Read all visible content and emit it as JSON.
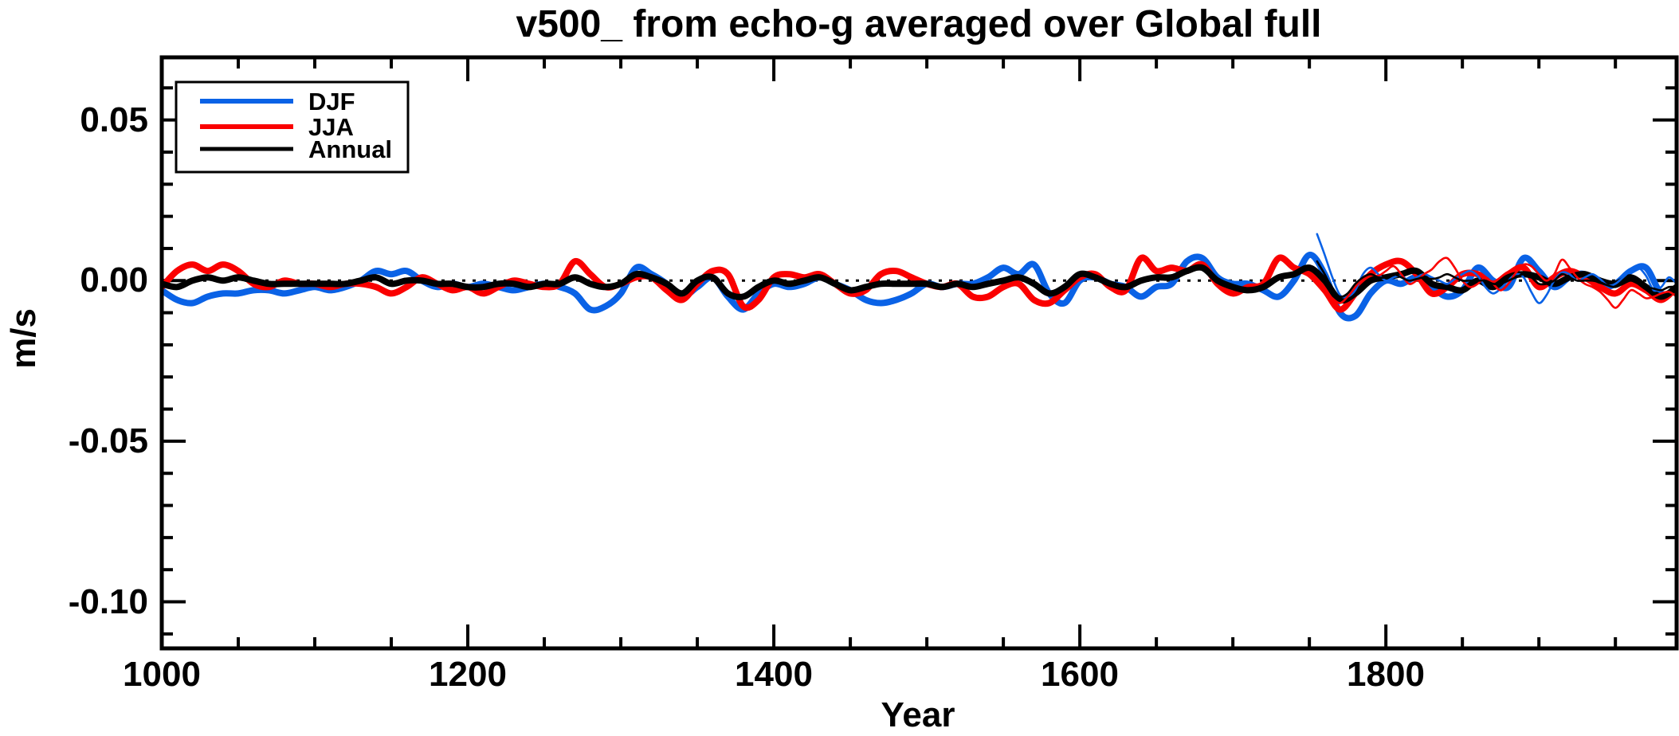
{
  "title": "v500_ from echo-g averaged over Global full",
  "axes": {
    "x": {
      "label": "Year",
      "tick_labels": [
        "1000",
        "1200",
        "1400",
        "1600",
        "1800"
      ]
    },
    "y": {
      "label": "m/s",
      "tick_labels": [
        "0.05",
        "0.00",
        "-0.05",
        "-0.10"
      ]
    }
  },
  "legend": {
    "items": [
      {
        "label": "DJF",
        "color": "#0a62e6"
      },
      {
        "label": "JJA",
        "color": "#fa0000"
      },
      {
        "label": "Annual",
        "color": "#000000"
      }
    ]
  },
  "chart_data": {
    "type": "line",
    "title": "v500_ from echo-g averaged over Global full",
    "xlabel": "Year",
    "ylabel": "m/s",
    "xlim": [
      1000,
      1990
    ],
    "ylim": [
      -0.1145,
      0.0695
    ],
    "x_major_ticks": [
      1000,
      1200,
      1400,
      1600,
      1800
    ],
    "x_minor_step": 50,
    "y_major_ticks": [
      0.05,
      0.0,
      -0.05,
      -0.1
    ],
    "y_minor_step": 0.01,
    "grid": false,
    "zero_line": {
      "show": true,
      "style": "dotted",
      "color": "#000000",
      "y": 0.0
    },
    "legend_position": "top-left",
    "series": [
      {
        "name": "DJF",
        "style": "thick",
        "color": "#0a62e6",
        "x_start": 1000,
        "x_step": 10,
        "values": [
          -0.003,
          -0.006,
          -0.007,
          -0.005,
          -0.004,
          -0.004,
          -0.003,
          -0.003,
          -0.004,
          -0.003,
          -0.002,
          -0.003,
          -0.002,
          0.0,
          0.003,
          0.002,
          0.003,
          0.0,
          -0.002,
          -0.001,
          -0.002,
          -0.001,
          -0.002,
          -0.003,
          -0.002,
          -0.001,
          -0.002,
          -0.004,
          -0.009,
          -0.008,
          -0.004,
          0.004,
          0.002,
          -0.001,
          -0.005,
          -0.002,
          0.001,
          -0.005,
          -0.009,
          -0.004,
          -0.001,
          -0.002,
          -0.001,
          0.001,
          -0.001,
          -0.003,
          -0.006,
          -0.007,
          -0.006,
          -0.004,
          -0.001,
          -0.002,
          -0.001,
          -0.001,
          0.001,
          0.004,
          0.002,
          0.005,
          -0.004,
          -0.007,
          0.0,
          0.001,
          -0.001,
          -0.002,
          -0.005,
          -0.002,
          -0.001,
          0.006,
          0.007,
          0.001,
          -0.001,
          -0.001,
          -0.003,
          -0.005,
          0.0,
          0.008,
          0.002,
          -0.01,
          -0.011,
          -0.004,
          0.0,
          -0.001,
          0.001,
          -0.002,
          -0.005,
          -0.003,
          0.004,
          0.0,
          -0.002,
          0.007,
          0.003,
          -0.002,
          0.001,
          0.002,
          -0.002,
          -0.001,
          0.003,
          0.004,
          -0.004,
          -0.003
        ]
      },
      {
        "name": "JJA",
        "style": "thick",
        "color": "#fa0000",
        "x_start": 1000,
        "x_step": 10,
        "values": [
          -0.002,
          0.003,
          0.005,
          0.003,
          0.005,
          0.003,
          -0.001,
          -0.002,
          0.0,
          -0.001,
          -0.001,
          -0.002,
          -0.001,
          -0.001,
          -0.002,
          -0.004,
          -0.002,
          0.001,
          -0.001,
          -0.003,
          -0.002,
          -0.004,
          -0.002,
          0.0,
          -0.001,
          -0.002,
          -0.001,
          0.006,
          0.002,
          -0.002,
          -0.001,
          0.001,
          0.001,
          -0.003,
          -0.006,
          -0.001,
          0.003,
          0.002,
          -0.008,
          -0.006,
          0.001,
          0.002,
          0.001,
          0.002,
          -0.001,
          -0.004,
          -0.003,
          0.002,
          0.003,
          0.001,
          -0.001,
          -0.002,
          -0.001,
          -0.005,
          -0.005,
          -0.002,
          -0.001,
          -0.006,
          -0.007,
          -0.003,
          0.001,
          0.002,
          -0.002,
          -0.003,
          0.007,
          0.003,
          0.004,
          0.003,
          0.005,
          -0.001,
          -0.004,
          -0.002,
          -0.001,
          0.007,
          0.004,
          0.002,
          -0.003,
          -0.009,
          -0.004,
          0.002,
          0.005,
          0.006,
          0.002,
          -0.004,
          -0.002,
          0.002,
          0.002,
          -0.001,
          0.002,
          0.004,
          -0.002,
          0.001,
          0.003,
          0.001,
          -0.002,
          -0.004,
          -0.001,
          -0.003,
          -0.006,
          -0.002
        ]
      },
      {
        "name": "Annual",
        "style": "thick",
        "color": "#000000",
        "x_start": 1000,
        "x_step": 10,
        "values": [
          -0.001,
          -0.002,
          0.0,
          0.001,
          0.0,
          0.001,
          0.0,
          -0.001,
          -0.001,
          -0.001,
          -0.001,
          -0.001,
          -0.001,
          0.0,
          0.001,
          -0.001,
          0.0,
          0.0,
          -0.001,
          -0.001,
          -0.002,
          -0.002,
          -0.001,
          -0.001,
          -0.002,
          -0.001,
          -0.001,
          0.001,
          -0.001,
          -0.002,
          -0.001,
          0.002,
          0.001,
          -0.001,
          -0.004,
          0.0,
          0.001,
          -0.004,
          -0.005,
          -0.002,
          0.0,
          -0.001,
          0.0,
          0.001,
          -0.001,
          -0.003,
          -0.002,
          -0.001,
          -0.001,
          -0.001,
          -0.001,
          -0.002,
          -0.001,
          -0.002,
          -0.001,
          0.0,
          0.001,
          -0.001,
          -0.004,
          -0.002,
          0.002,
          0.001,
          -0.001,
          -0.002,
          0.0,
          0.001,
          0.001,
          0.003,
          0.004,
          0.0,
          -0.002,
          -0.003,
          -0.002,
          0.001,
          0.002,
          0.004,
          0.0,
          -0.006,
          -0.004,
          0.0,
          0.001,
          0.002,
          0.003,
          -0.001,
          -0.002,
          -0.003,
          0.0,
          -0.002,
          0.001,
          0.002,
          0.001,
          -0.001,
          0.001,
          0.002,
          0.0,
          -0.001,
          0.001,
          -0.002,
          -0.005,
          -0.002
        ]
      },
      {
        "name": "DJF thin (2nd realization)",
        "style": "thin",
        "color": "#0a62e6",
        "x_start": 1755,
        "x_step": 5,
        "values": [
          0.0145,
          0.008,
          0.001,
          -0.0045,
          -0.005,
          -0.003,
          0.002,
          0.004,
          0.002,
          0.0,
          0.001,
          0.0015,
          0.0,
          0.001,
          0.002,
          0.001,
          0.0,
          -0.001,
          0.0005,
          0.002,
          0.003,
          0.0015,
          -0.002,
          -0.004,
          -0.0025,
          0.0,
          0.002,
          0.001,
          -0.0035,
          -0.007,
          -0.0045,
          0.0,
          0.0025,
          0.002,
          0.0,
          0.001,
          0.002,
          0.0005,
          -0.0015,
          -0.001,
          0.001,
          0.003,
          0.004,
          0.0015,
          -0.003,
          -0.002,
          0.001,
          -0.001
        ]
      },
      {
        "name": "JJA thin (2nd realization)",
        "style": "thin",
        "color": "#fa0000",
        "x_start": 1755,
        "x_step": 5,
        "values": [
          -0.001,
          -0.003,
          -0.0055,
          -0.007,
          -0.005,
          -0.002,
          0.001,
          0.002,
          0.0015,
          0.003,
          0.0045,
          0.002,
          -0.001,
          0.0,
          0.002,
          0.0035,
          0.006,
          0.007,
          0.004,
          0.0,
          -0.002,
          -0.001,
          0.001,
          -0.001,
          -0.003,
          -0.001,
          0.0025,
          0.005,
          0.0045,
          0.002,
          0.0,
          0.002,
          0.0065,
          0.004,
          0.001,
          -0.001,
          -0.002,
          -0.0035,
          -0.006,
          -0.0085,
          -0.006,
          -0.003,
          -0.004,
          -0.0055,
          -0.005,
          -0.004,
          -0.0035,
          -0.005
        ]
      },
      {
        "name": "Annual thin (2nd realization)",
        "style": "thin",
        "color": "#000000",
        "x_start": 1755,
        "x_step": 5,
        "values": [
          0.006,
          0.002,
          -0.0025,
          -0.005,
          -0.004,
          -0.001,
          0.001,
          0.002,
          0.001,
          0.001,
          0.002,
          0.001,
          0.0,
          0.0005,
          0.001,
          0.0005,
          0.001,
          0.002,
          0.001,
          0.0,
          0.0,
          0.0,
          0.0,
          -0.001,
          -0.001,
          0.0,
          0.001,
          0.002,
          0.001,
          -0.001,
          -0.001,
          0.0,
          0.002,
          0.001,
          0.0,
          0.0,
          0.0,
          -0.0005,
          -0.0015,
          -0.002,
          -0.001,
          0.0,
          -0.001,
          -0.002,
          -0.0025,
          -0.003,
          -0.002,
          -0.002
        ]
      }
    ]
  }
}
